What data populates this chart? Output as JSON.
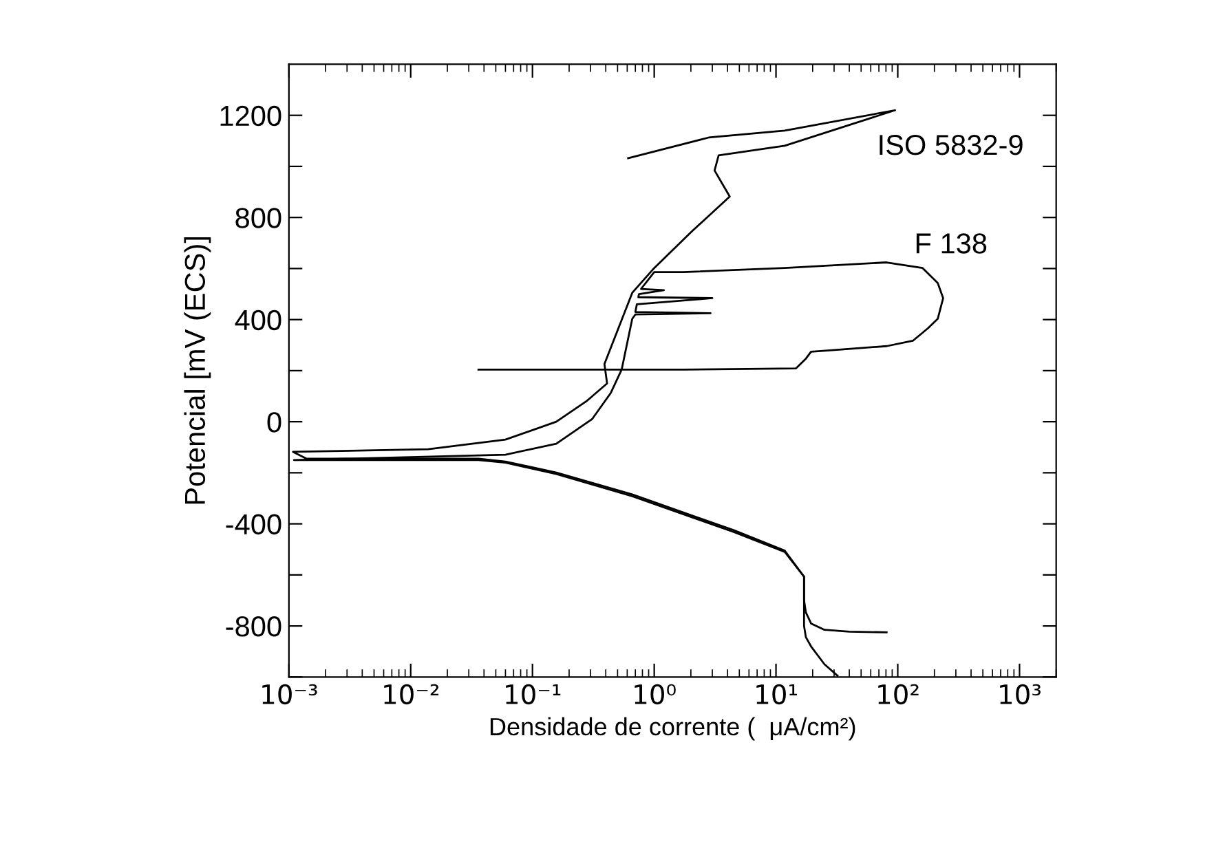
{
  "chart_data": {
    "type": "line",
    "xlabel": "Densidade de corrente (  μA/cm²)",
    "ylabel": "Potencial [mV (ECS)]",
    "log": "x",
    "xlim": [
      0.001,
      2000
    ],
    "ylim": [
      -1000,
      1400
    ],
    "xticks": [
      {
        "value": 0.001,
        "label": "10⁻³"
      },
      {
        "value": 0.01,
        "label": "10⁻²"
      },
      {
        "value": 0.1,
        "label": "10⁻¹"
      },
      {
        "value": 1,
        "label": "10⁰"
      },
      {
        "value": 10,
        "label": "10¹"
      },
      {
        "value": 100,
        "label": "10²"
      },
      {
        "value": 1000,
        "label": "10³"
      }
    ],
    "yticks": [
      {
        "value": -1000,
        "label": null
      },
      -800,
      {
        "value": -600,
        "label": null
      },
      -400,
      {
        "value": -200,
        "label": null
      },
      0,
      {
        "value": 200,
        "label": null
      },
      400,
      {
        "value": 600,
        "label": null
      },
      800,
      {
        "value": 1000,
        "label": null
      },
      1200
    ],
    "grid": false,
    "legend": "top right",
    "marker": "none",
    "line_style": "solid",
    "series": [
      {
        "name": "ISO 5832-9",
        "color": "#000000",
        "x": [
          81,
          40,
          25,
          19.4,
          17.6,
          17,
          17,
          11.8,
          4.5,
          0.66,
          0.157,
          0.06,
          0.036,
          0.0014,
          0.00108,
          0.0139,
          0.06,
          0.157,
          0.277,
          0.41,
          0.39,
          0.66,
          1.0,
          2.0,
          4.17,
          3.13,
          3.38,
          11.8,
          95,
          11.8,
          2.8,
          0.61
        ],
        "values": [
          -825,
          -822,
          -815,
          -790,
          -747,
          -700,
          -607,
          -505,
          -425,
          -285,
          -199,
          -156,
          -145,
          -145,
          -118,
          -108,
          -70,
          0,
          80,
          150,
          226,
          505,
          602,
          742,
          882,
          984,
          1043,
          1081,
          1220,
          1140,
          1113,
          1032
        ]
      },
      {
        "name": "F 138",
        "color": "#000000",
        "x": [
          32,
          25,
          19.4,
          17.6,
          17,
          17,
          11.8,
          4.5,
          0.66,
          0.157,
          0.06,
          0.036,
          0.0014,
          0.0011,
          0.06,
          0.157,
          0.31,
          0.44,
          0.54,
          0.66,
          0.7,
          2.9,
          0.7,
          0.72,
          3.0,
          0.74,
          0.75,
          1.2,
          0.78,
          0.8,
          1.0,
          1.73,
          11.8,
          81,
          160,
          213,
          236,
          213,
          177,
          133,
          81,
          19.4,
          17.6,
          14.6,
          1.73,
          0.036
        ],
        "values": [
          -995,
          -950,
          -880,
          -844,
          -800,
          -607,
          -510,
          -432,
          -292,
          -205,
          -160,
          -150,
          -150,
          -150,
          -129,
          -86,
          11,
          113,
          204,
          403,
          420,
          425,
          430,
          460,
          484,
          488,
          500,
          515,
          520,
          527,
          586,
          586,
          602,
          624,
          602,
          543,
          484,
          403,
          366,
          317,
          296,
          274,
          247,
          209,
          204,
          204
        ]
      }
    ]
  }
}
